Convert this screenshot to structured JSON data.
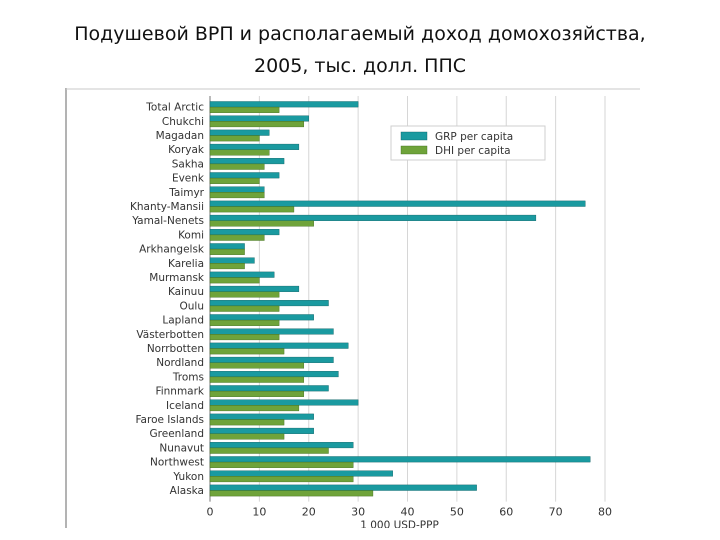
{
  "slide": {
    "title_line1": "Подушевой ВРП и располагаемый доход домохозяйства,",
    "title_line2": "2005, тыс. долл. ППС"
  },
  "chart_data": {
    "type": "bar",
    "orientation": "horizontal",
    "title": "Подушевой ВРП и располагаемый доход домохозяйства, 2005, тыс. долл. ППС",
    "xlabel": "1 000 USD-PPP",
    "ylabel": "",
    "xlim": [
      0,
      80
    ],
    "xticks": [
      0,
      10,
      20,
      30,
      40,
      50,
      60,
      70,
      80
    ],
    "grid": true,
    "legend_position": "top-right",
    "categories": [
      "Total Arctic",
      "Chukchi",
      "Magadan",
      "Koryak",
      "Sakha",
      "Evenk",
      "Taimyr",
      "Khanty-Mansii",
      "Yamal-Nenets",
      "Komi",
      "Arkhangelsk",
      "Karelia",
      "Murmansk",
      "Kainuu",
      "Oulu",
      "Lapland",
      "Västerbotten",
      "Norrbotten",
      "Nordland",
      "Troms",
      "Finnmark",
      "Iceland",
      "Faroe Islands",
      "Greenland",
      "Nunavut",
      "Northwest",
      "Yukon",
      "Alaska"
    ],
    "series": [
      {
        "name": "GRP per capita",
        "color": "#1a9aa0",
        "values": [
          30,
          20,
          12,
          18,
          15,
          14,
          11,
          76,
          66,
          14,
          7,
          9,
          13,
          18,
          24,
          21,
          25,
          28,
          25,
          26,
          24,
          30,
          21,
          21,
          29,
          77,
          37,
          54
        ]
      },
      {
        "name": "DHI per capita",
        "color": "#6fa33a",
        "values": [
          14,
          19,
          10,
          12,
          11,
          10,
          11,
          17,
          21,
          11,
          7,
          7,
          10,
          14,
          14,
          14,
          14,
          15,
          19,
          19,
          19,
          18,
          15,
          15,
          24,
          29,
          29,
          33
        ]
      }
    ]
  }
}
